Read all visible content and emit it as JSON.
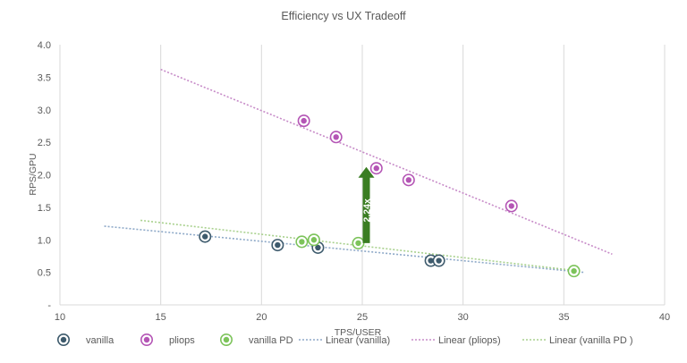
{
  "chart_data": {
    "type": "scatter",
    "title": "Efficiency vs UX Tradeoff",
    "xlabel": "TPS/USER",
    "ylabel": "RPS/GPU",
    "xlim": [
      10,
      40
    ],
    "ylim": [
      0,
      4
    ],
    "x_ticks": [
      10,
      15,
      20,
      25,
      30,
      35,
      40
    ],
    "x_tick_labels": [
      "10",
      "15",
      "20",
      "25",
      "30",
      "35",
      "40"
    ],
    "y_ticks": [
      0,
      0.5,
      1,
      1.5,
      2,
      2.5,
      3,
      3.5,
      4
    ],
    "y_tick_labels": [
      "-",
      "0.5",
      "1.0",
      "1.5",
      "2.0",
      "2.5",
      "3.0",
      "3.5",
      "4.0"
    ],
    "grid": "vertical",
    "legend_position": "bottom",
    "series": [
      {
        "name": "vanilla",
        "color": "#3d5a6c",
        "points": [
          [
            17.2,
            1.05
          ],
          [
            20.8,
            0.92
          ],
          [
            22.8,
            0.88
          ],
          [
            28.4,
            0.68
          ],
          [
            28.8,
            0.68
          ]
        ]
      },
      {
        "name": "pliops",
        "color": "#b455b5",
        "points": [
          [
            22.1,
            2.83
          ],
          [
            23.7,
            2.58
          ],
          [
            25.7,
            2.1
          ],
          [
            27.3,
            1.92
          ],
          [
            32.4,
            1.52
          ]
        ]
      },
      {
        "name": "vanilla PD",
        "color": "#7cc35a",
        "points": [
          [
            22.0,
            0.97
          ],
          [
            22.6,
            1.0
          ],
          [
            24.8,
            0.95
          ],
          [
            35.5,
            0.52
          ]
        ]
      }
    ],
    "trendlines": [
      {
        "name": "Linear (vanilla)",
        "color": "#8ea9c8",
        "from": [
          12.2,
          1.21
        ],
        "to": [
          36.0,
          0.5
        ]
      },
      {
        "name": "Linear (pliops)",
        "color": "#c78bc8",
        "from": [
          15.0,
          3.62
        ],
        "to": [
          37.4,
          0.78
        ]
      },
      {
        "name": "Linear (vanilla PD )",
        "color": "#a9d18e",
        "from": [
          14.0,
          1.3
        ],
        "to": [
          35.5,
          0.53
        ]
      }
    ],
    "annotation": {
      "text": "2.24x",
      "color": "#3a7d22",
      "x": 25.2,
      "y_from": 0.95,
      "y_to": 2.12
    }
  }
}
